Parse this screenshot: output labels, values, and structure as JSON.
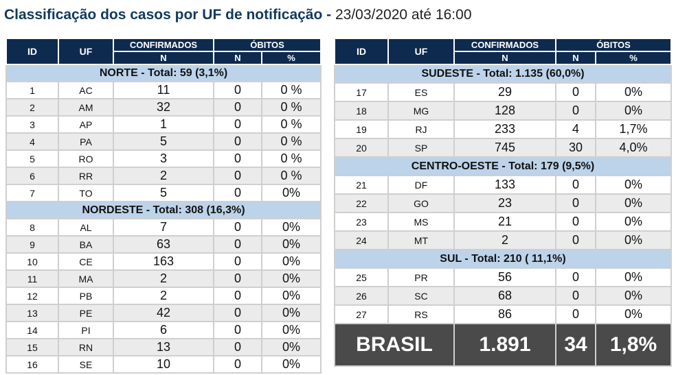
{
  "title": {
    "main": "Classificação dos casos por UF de notificação",
    "separator": " - ",
    "date": "23/03/2020 até 16:00"
  },
  "headers": {
    "id": "ID",
    "uf": "UF",
    "confirmados": "CONFIRMADOS",
    "obitos": "ÓBITOS",
    "n": "N",
    "pct": "%"
  },
  "left_table": {
    "regions": [
      {
        "label": "NORTE - Total: 59 (3,1%)",
        "rows": [
          {
            "id": "1",
            "uf": "AC",
            "conf": "11",
            "obitos": "0",
            "pct": "0 %"
          },
          {
            "id": "2",
            "uf": "AM",
            "conf": "32",
            "obitos": "0",
            "pct": "0 %"
          },
          {
            "id": "3",
            "uf": "AP",
            "conf": "1",
            "obitos": "0",
            "pct": "0 %"
          },
          {
            "id": "4",
            "uf": "PA",
            "conf": "5",
            "obitos": "0",
            "pct": "0 %"
          },
          {
            "id": "5",
            "uf": "RO",
            "conf": "3",
            "obitos": "0",
            "pct": "0 %"
          },
          {
            "id": "6",
            "uf": "RR",
            "conf": "2",
            "obitos": "0",
            "pct": "0 %"
          },
          {
            "id": "7",
            "uf": "TO",
            "conf": "5",
            "obitos": "0",
            "pct": "0%"
          }
        ]
      },
      {
        "label": "NORDESTE -  Total: 308  (16,3%)",
        "rows": [
          {
            "id": "8",
            "uf": "AL",
            "conf": "7",
            "obitos": "0",
            "pct": "0%"
          },
          {
            "id": "9",
            "uf": "BA",
            "conf": "63",
            "obitos": "0",
            "pct": "0%"
          },
          {
            "id": "10",
            "uf": "CE",
            "conf": "163",
            "obitos": "0",
            "pct": "0%"
          },
          {
            "id": "11",
            "uf": "MA",
            "conf": "2",
            "obitos": "0",
            "pct": "0%"
          },
          {
            "id": "12",
            "uf": "PB",
            "conf": "2",
            "obitos": "0",
            "pct": "0%"
          },
          {
            "id": "13",
            "uf": "PE",
            "conf": "42",
            "obitos": "0",
            "pct": "0%"
          },
          {
            "id": "14",
            "uf": "PI",
            "conf": "6",
            "obitos": "0",
            "pct": "0%"
          },
          {
            "id": "15",
            "uf": "RN",
            "conf": "13",
            "obitos": "0",
            "pct": "0%"
          },
          {
            "id": "16",
            "uf": "SE",
            "conf": "10",
            "obitos": "0",
            "pct": "0%"
          }
        ]
      }
    ]
  },
  "right_table": {
    "regions": [
      {
        "label": "SUDESTE - Total:  1.135 (60,0%)",
        "rows": [
          {
            "id": "17",
            "uf": "ES",
            "conf": "29",
            "obitos": "0",
            "pct": "0%"
          },
          {
            "id": "18",
            "uf": "MG",
            "conf": "128",
            "obitos": "0",
            "pct": "0%"
          },
          {
            "id": "19",
            "uf": "RJ",
            "conf": "233",
            "obitos": "4",
            "pct": "1,7%"
          },
          {
            "id": "20",
            "uf": "SP",
            "conf": "745",
            "obitos": "30",
            "pct": "4,0%"
          }
        ]
      },
      {
        "label": "CENTRO-OESTE - Total: 179 (9,5%)",
        "rows": [
          {
            "id": "21",
            "uf": "DF",
            "conf": "133",
            "obitos": "0",
            "pct": "0%"
          },
          {
            "id": "22",
            "uf": "GO",
            "conf": "23",
            "obitos": "0",
            "pct": "0%"
          },
          {
            "id": "23",
            "uf": "MS",
            "conf": "21",
            "obitos": "0",
            "pct": "0%"
          },
          {
            "id": "24",
            "uf": "MT",
            "conf": "2",
            "obitos": "0",
            "pct": "0%"
          }
        ]
      },
      {
        "label": "SUL - Total:  210 ( 11,1%)",
        "rows": [
          {
            "id": "25",
            "uf": "PR",
            "conf": "56",
            "obitos": "0",
            "pct": "0%"
          },
          {
            "id": "26",
            "uf": "SC",
            "conf": "68",
            "obitos": "0",
            "pct": "0%"
          },
          {
            "id": "27",
            "uf": "RS",
            "conf": "86",
            "obitos": "0",
            "pct": "0%"
          }
        ]
      }
    ],
    "total": {
      "label": "BRASIL",
      "conf": "1.891",
      "obitos": "34",
      "pct": "1,8%"
    }
  },
  "colors": {
    "header_bg": "#0f2a4f",
    "region_bg": "#bcd3ea",
    "alt_row_bg": "#ebebeb",
    "total_bg": "#4a4a4a",
    "title_color": "#12395f"
  }
}
